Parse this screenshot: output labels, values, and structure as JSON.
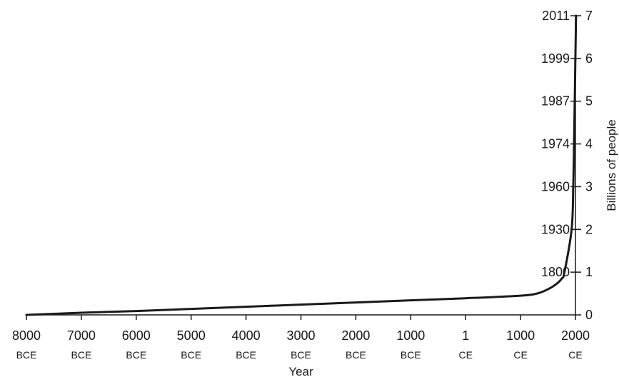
{
  "chart_data": {
    "type": "line",
    "xlabel": "Year",
    "ylabel": "Billions of people",
    "grid": false,
    "x_ticks": [
      {
        "year": "8000",
        "era": "BCE"
      },
      {
        "year": "7000",
        "era": "BCE"
      },
      {
        "year": "6000",
        "era": "BCE"
      },
      {
        "year": "5000",
        "era": "BCE"
      },
      {
        "year": "4000",
        "era": "BCE"
      },
      {
        "year": "3000",
        "era": "BCE"
      },
      {
        "year": "2000",
        "era": "BCE"
      },
      {
        "year": "1000",
        "era": "BCE"
      },
      {
        "year": "1",
        "era": "CE"
      },
      {
        "year": "1000",
        "era": "CE"
      },
      {
        "year": "2000",
        "era": "CE"
      }
    ],
    "y_ticks": [
      "0",
      "1",
      "2",
      "3",
      "4",
      "5",
      "6",
      "7"
    ],
    "ylim": [
      0,
      7
    ],
    "xlim": [
      -8000,
      2000
    ],
    "milestones": [
      {
        "year": "1800",
        "population": 1
      },
      {
        "year": "1930",
        "population": 2
      },
      {
        "year": "1960",
        "population": 3
      },
      {
        "year": "1974",
        "population": 4
      },
      {
        "year": "1987",
        "population": 5
      },
      {
        "year": "1999",
        "population": 6
      },
      {
        "year": "2011",
        "population": 7
      }
    ],
    "series": [
      {
        "points": [
          {
            "x": -8000,
            "y": 0.0
          },
          {
            "x": -7000,
            "y": 0.05
          },
          {
            "x": -6000,
            "y": 0.09
          },
          {
            "x": -5000,
            "y": 0.14
          },
          {
            "x": -4000,
            "y": 0.19
          },
          {
            "x": -3000,
            "y": 0.24
          },
          {
            "x": -2000,
            "y": 0.29
          },
          {
            "x": -1000,
            "y": 0.34
          },
          {
            "x": 1,
            "y": 0.39
          },
          {
            "x": 1000,
            "y": 0.45
          },
          {
            "x": 1300,
            "y": 0.5
          },
          {
            "x": 1500,
            "y": 0.6
          },
          {
            "x": 1650,
            "y": 0.72
          },
          {
            "x": 1750,
            "y": 0.85
          },
          {
            "x": 1800,
            "y": 1.0
          },
          {
            "x": 1930,
            "y": 2.0
          },
          {
            "x": 1960,
            "y": 3.0
          },
          {
            "x": 1974,
            "y": 4.0
          },
          {
            "x": 1987,
            "y": 5.0
          },
          {
            "x": 1999,
            "y": 6.0
          },
          {
            "x": 2011,
            "y": 7.0
          }
        ]
      }
    ]
  }
}
